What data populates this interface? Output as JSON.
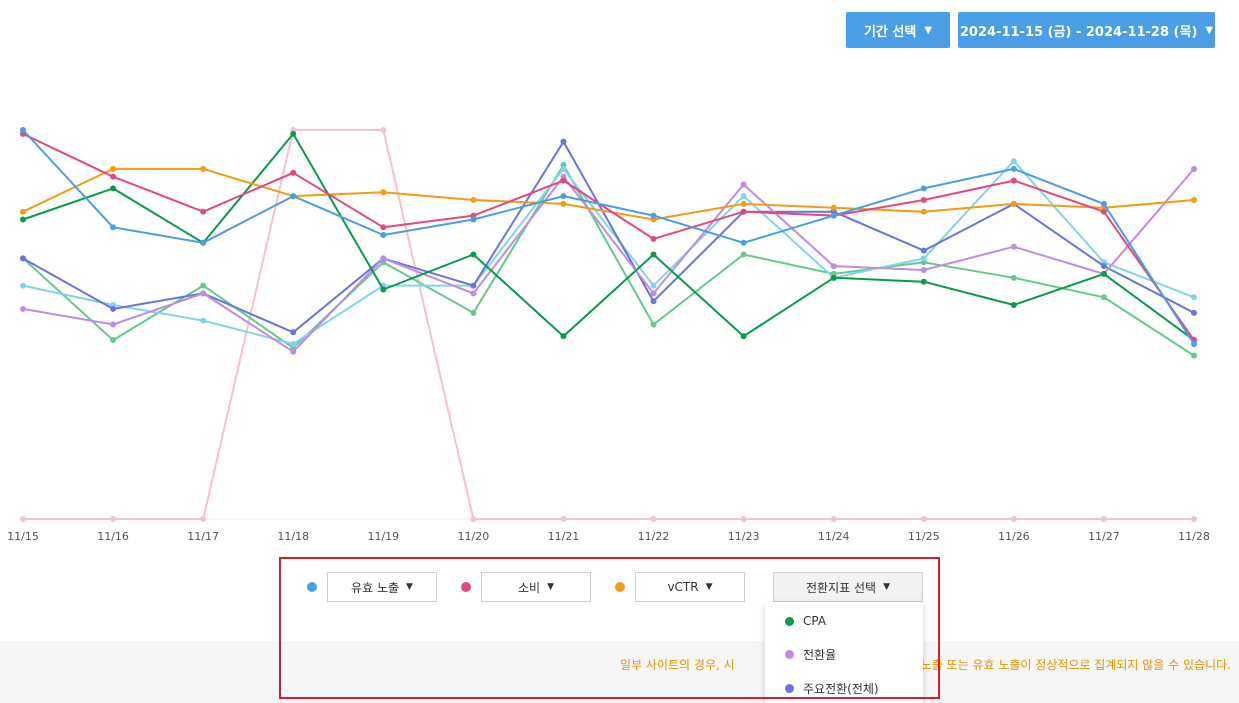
{
  "controls": {
    "period_label": "기간 선택",
    "range_label": "2024-11-15 (금) - 2024-11-28 (목)"
  },
  "legend": [
    {
      "label": "유효 노출",
      "color": "#4a9ee6"
    },
    {
      "label": "소비",
      "color": "#e5487a"
    },
    {
      "label": "vCTR",
      "color": "#f39c12"
    },
    {
      "label": "전환지표 선택",
      "color": ""
    }
  ],
  "dropdown": {
    "items": [
      {
        "label": "CPA",
        "color": "#0a9a4a"
      },
      {
        "label": "전환율",
        "color": "#c08ae8"
      },
      {
        "label": "주요전환(전체)",
        "color": "#6a74e0"
      }
    ]
  },
  "notice": {
    "visible_text_left": "일부 사이트의 경우, 시",
    "visible_text_right": "노출 또는 유효 노출이 정상적으로 집계되지 않을 수 있습니다."
  },
  "chart_data": {
    "type": "line",
    "x": [
      "11/15",
      "11/16",
      "11/17",
      "11/18",
      "11/19",
      "11/20",
      "11/21",
      "11/22",
      "11/23",
      "11/24",
      "11/25",
      "11/26",
      "11/27",
      "11/28"
    ],
    "ylim": [
      0,
      100
    ],
    "grid": false,
    "series": [
      {
        "color": "#4a9ee6",
        "values": [
          100,
          75,
          71,
          83,
          73,
          77,
          83,
          78,
          71,
          78,
          85,
          90,
          81,
          45
        ]
      },
      {
        "color": "#e5487a",
        "values": [
          99,
          88,
          79,
          89,
          75,
          78,
          87,
          72,
          79,
          78,
          82,
          87,
          79,
          46
        ]
      },
      {
        "color": "#f39c12",
        "values": [
          79,
          90,
          90,
          83,
          84,
          82,
          81,
          77,
          81,
          80,
          79,
          81,
          80,
          82
        ]
      },
      {
        "color": "#0a9a4a",
        "values": [
          77,
          85,
          71,
          99,
          59,
          68,
          47,
          68,
          47,
          62,
          61,
          55,
          63,
          46
        ]
      },
      {
        "color": "#c08ae8",
        "values": [
          54,
          50,
          58,
          43,
          67,
          58,
          88,
          58,
          86,
          65,
          64,
          70,
          63,
          90
        ]
      },
      {
        "color": "#6a74e0",
        "values": [
          67,
          54,
          58,
          48,
          67,
          60,
          97,
          56,
          79,
          79,
          69,
          81,
          65,
          53
        ]
      },
      {
        "color": "#85d2ee",
        "values": [
          60,
          55,
          51,
          45,
          60,
          60,
          90,
          60,
          83,
          62,
          67,
          92,
          66,
          57
        ]
      },
      {
        "color": "#66c98c",
        "values": [
          67,
          46,
          60,
          44,
          66,
          53,
          91,
          50,
          68,
          63,
          66,
          62,
          57,
          42
        ]
      },
      {
        "color": "#f8bfd2",
        "values": [
          0,
          0,
          0,
          100,
          100,
          0,
          0,
          0,
          0,
          0,
          0,
          0,
          0,
          0
        ]
      }
    ]
  }
}
